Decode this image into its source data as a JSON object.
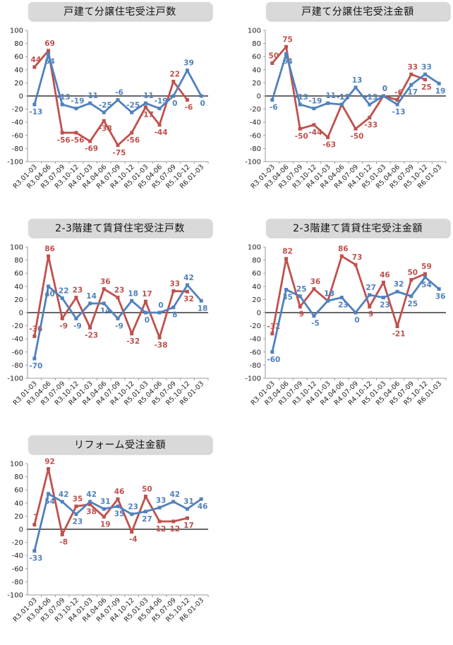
{
  "colors": {
    "series_red": "#c0504d",
    "series_blue": "#4f81bd",
    "zero_line": "#333333",
    "axis": "#9b9b9b"
  },
  "chart_data": [
    {
      "type": "line",
      "title": "戸建て分譲住宅受注戸数",
      "categories": [
        "R3.01-03",
        "R3.04-06",
        "R3.07-09",
        "R3.10-12",
        "R4.01-03",
        "R4.04-06",
        "R4.07-09",
        "R4.10-12",
        "R5.01-03",
        "R5.04-06",
        "R5.07-09",
        "R5.10-12",
        "R6.01-03"
      ],
      "ylim": [
        -100,
        100
      ],
      "yticks": [
        100,
        80,
        60,
        40,
        20,
        0,
        -20,
        -40,
        -60,
        -80,
        -100
      ],
      "series": [
        {
          "color": "red",
          "values": [
            44,
            69,
            -56,
            -56,
            -69,
            -38,
            -75,
            -56,
            -17,
            -44,
            22,
            -6,
            null
          ]
        },
        {
          "color": "blue",
          "values": [
            -13,
            64,
            -13,
            -19,
            -11,
            -25,
            -6,
            -25,
            -11,
            -19,
            0,
            39,
            0
          ]
        }
      ]
    },
    {
      "type": "line",
      "title": "戸建て分譲住宅受注金額",
      "categories": [
        "R3.01-03",
        "R3.04-06",
        "R3.07-09",
        "R3.10-12",
        "R4.01-03",
        "R4.04-06",
        "R4.07-09",
        "R4.10-12",
        "R5.01-03",
        "R5.04-06",
        "R5.07-09",
        "R5.10-12",
        "R6.01-03"
      ],
      "ylim": [
        -100,
        100
      ],
      "yticks": [
        100,
        80,
        60,
        40,
        20,
        0,
        -20,
        -40,
        -60,
        -80,
        -100
      ],
      "series": [
        {
          "color": "red",
          "values": [
            50,
            75,
            -50,
            -44,
            -63,
            -13,
            -50,
            -33,
            0,
            -6,
            33,
            25,
            null
          ]
        },
        {
          "color": "blue",
          "values": [
            -6,
            64,
            -13,
            -19,
            -11,
            -13,
            13,
            -13,
            0,
            -13,
            17,
            33,
            19
          ]
        }
      ]
    },
    {
      "type": "line",
      "title": "2-3階建て賃貸住宅受注戸数",
      "categories": [
        "R3.01-03",
        "R3.04-06",
        "R3.07-09",
        "R3.10-12",
        "R4.01-03",
        "R4.04-06",
        "R4.07-09",
        "R4.10-12",
        "R5.01-03",
        "R5.04-06",
        "R5.07-09",
        "R5.10-12",
        "R6.01-03"
      ],
      "ylim": [
        -100,
        100
      ],
      "yticks": [
        100,
        80,
        60,
        40,
        20,
        0,
        -20,
        -40,
        -60,
        -80,
        -100
      ],
      "series": [
        {
          "color": "red",
          "values": [
            -36,
            86,
            -9,
            23,
            -23,
            36,
            23,
            -32,
            17,
            -38,
            33,
            32,
            null
          ]
        },
        {
          "color": "blue",
          "values": [
            -70,
            40,
            22,
            -9,
            14,
            14,
            -9,
            18,
            0,
            0,
            8,
            42,
            18
          ]
        }
      ]
    },
    {
      "type": "line",
      "title": "2-3階建て賃貸住宅受注金額",
      "categories": [
        "R3.01-03",
        "R3.04-06",
        "R3.07-09",
        "R3.10-12",
        "R4.01-03",
        "R4.04-06",
        "R4.07-09",
        "R4.10-12",
        "R5.01-03",
        "R5.04-06",
        "R5.07-09",
        "R5.10-12",
        "R6.01-03"
      ],
      "ylim": [
        -100,
        100
      ],
      "yticks": [
        100,
        80,
        60,
        40,
        20,
        0,
        -20,
        -40,
        -60,
        -80,
        -100
      ],
      "series": [
        {
          "color": "red",
          "values": [
            -32,
            82,
            9,
            36,
            18,
            86,
            73,
            9,
            46,
            -21,
            50,
            59,
            null
          ]
        },
        {
          "color": "blue",
          "values": [
            -60,
            35,
            25,
            -5,
            18,
            23,
            0,
            27,
            23,
            32,
            25,
            54,
            36
          ]
        }
      ]
    },
    {
      "type": "line",
      "title": "リフォーム受注金額",
      "categories": [
        "R3.01-03",
        "R3.04-06",
        "R3.07-09",
        "R3.10-12",
        "R4.01-03",
        "R4.04-06",
        "R4.07-09",
        "R4.10-12",
        "R5.01-03",
        "R5.04-06",
        "R5.07-09",
        "R5.10-12",
        "R6.01-03"
      ],
      "ylim": [
        -100,
        100
      ],
      "yticks": [
        100,
        80,
        60,
        40,
        20,
        0,
        -20,
        -40,
        -60,
        -80,
        -100
      ],
      "series": [
        {
          "color": "red",
          "values": [
            7,
            92,
            -8,
            35,
            38,
            19,
            46,
            -4,
            50,
            12,
            12,
            17,
            null
          ]
        },
        {
          "color": "blue",
          "values": [
            -33,
            54,
            42,
            23,
            42,
            31,
            35,
            23,
            27,
            33,
            42,
            31,
            46
          ]
        }
      ]
    }
  ]
}
